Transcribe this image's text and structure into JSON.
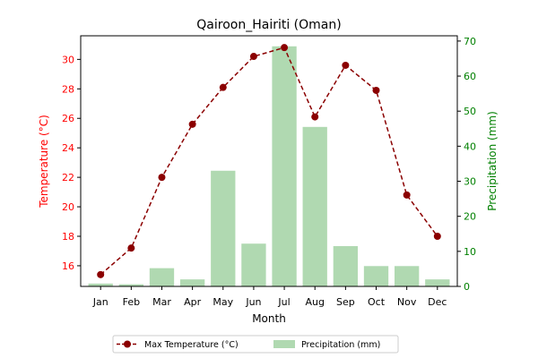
{
  "chart_data": {
    "type": "bar+line",
    "title": "Qairoon_Hairiti (Oman)",
    "xlabel": "Month",
    "ylabel_left": "Temperature (°C)",
    "ylabel_right": "Precipitation (mm)",
    "categories": [
      "Jan",
      "Feb",
      "Mar",
      "Apr",
      "May",
      "Jun",
      "Jul",
      "Aug",
      "Sep",
      "Oct",
      "Nov",
      "Dec"
    ],
    "y_left_lim": [
      14.6,
      31.6
    ],
    "y_left_ticks": [
      16,
      18,
      20,
      22,
      24,
      26,
      28,
      30
    ],
    "y_right_lim": [
      0,
      71.5
    ],
    "y_right_ticks": [
      0,
      10,
      20,
      30,
      40,
      50,
      60,
      70
    ],
    "grid": false,
    "legend_position": "bottom-center",
    "colors": {
      "line": "#8b0000",
      "bars": "#b0d9b1",
      "left_axis": "#ff0000",
      "right_axis": "#008000"
    },
    "series": [
      {
        "name": "Max Temperature (°C)",
        "type": "line",
        "axis": "left",
        "values": [
          15.4,
          17.2,
          22.0,
          25.6,
          28.1,
          30.2,
          30.8,
          26.1,
          29.6,
          27.9,
          20.8,
          18.0
        ]
      },
      {
        "name": "Precipitation (mm)",
        "type": "bar",
        "axis": "right",
        "values": [
          0.8,
          0.6,
          5.2,
          2.0,
          33.0,
          12.2,
          68.5,
          45.5,
          11.5,
          5.8,
          5.8,
          2.0
        ]
      }
    ]
  }
}
